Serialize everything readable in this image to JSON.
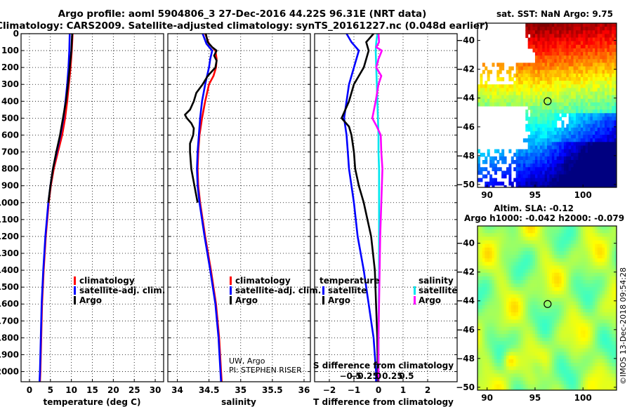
{
  "header": {
    "line1": "Argo profile: aoml 5904806_3 27-Dec-2016 44.22S 96.31E (NRT data)",
    "line2": "Climatology: CARS2009. Satellite-adjusted climatology: synTS_20161227.nc (0.048d earlier)"
  },
  "colors": {
    "climatology": "#ff0000",
    "satellite": "#0000ff",
    "argo": "#000000",
    "salinity_sat": "#00e5ee",
    "salinity_argo": "#ff00ff"
  },
  "chart_data": [
    {
      "type": "line",
      "id": "temperature",
      "xlabel": "temperature (deg C)",
      "xlim": [
        -2,
        32
      ],
      "ylim": [
        2060,
        0
      ],
      "xticks": [
        0,
        5,
        10,
        15,
        20,
        25,
        30
      ],
      "yticks": [
        0,
        100,
        200,
        300,
        400,
        500,
        600,
        700,
        800,
        900,
        1000,
        1100,
        1200,
        1300,
        1400,
        1500,
        1600,
        1700,
        1800,
        1900,
        2000
      ],
      "legend": [
        "climatology",
        "satellite-adj. clim.",
        "Argo"
      ],
      "series": [
        {
          "name": "climatology",
          "color": "#ff0000",
          "depth": [
            0,
            100,
            200,
            300,
            400,
            500,
            600,
            700,
            800,
            900,
            1000,
            1200,
            1400,
            1600,
            1800,
            2000,
            2060
          ],
          "values": [
            10.3,
            10.1,
            9.8,
            9.4,
            9.0,
            8.5,
            7.8,
            6.8,
            5.8,
            5.1,
            4.6,
            3.9,
            3.4,
            3.0,
            2.8,
            2.6,
            2.5
          ]
        },
        {
          "name": "satellite-adj. clim.",
          "color": "#0000ff",
          "depth": [
            0,
            100,
            200,
            300,
            400,
            500,
            600,
            700,
            800,
            900,
            1000,
            1200,
            1400,
            1600,
            1800,
            2000,
            2060
          ],
          "values": [
            9.6,
            9.5,
            9.3,
            9.0,
            8.6,
            8.1,
            7.4,
            6.5,
            5.6,
            5.0,
            4.5,
            3.8,
            3.3,
            2.9,
            2.7,
            2.5,
            2.4
          ]
        },
        {
          "name": "Argo",
          "color": "#000000",
          "depth": [
            0,
            50,
            100,
            200,
            300,
            400,
            500,
            600,
            700,
            800,
            900,
            1000
          ],
          "values": [
            10.2,
            10.1,
            10.0,
            9.6,
            9.2,
            8.7,
            8.0,
            7.3,
            6.4,
            5.6,
            5.0,
            4.5
          ]
        }
      ]
    },
    {
      "type": "line",
      "id": "salinity",
      "xlabel": "salinity",
      "xlim": [
        33.85,
        36.1
      ],
      "ylim": [
        2060,
        0
      ],
      "xticks": [
        34,
        34.5,
        35,
        35.5,
        36
      ],
      "legend": [
        "climatology",
        "satellite-adj. clim.",
        "Argo"
      ],
      "annotation": [
        "UW, Argo",
        "PI: STEPHEN RISER"
      ],
      "series": [
        {
          "name": "climatology",
          "color": "#ff0000",
          "depth": [
            0,
            60,
            100,
            150,
            200,
            250,
            300,
            400,
            500,
            600,
            700,
            800,
            900,
            1000,
            1200,
            1400,
            1600,
            1800,
            2000,
            2060
          ],
          "values": [
            34.44,
            34.5,
            34.6,
            34.62,
            34.61,
            34.57,
            34.5,
            34.44,
            34.39,
            34.35,
            34.33,
            34.32,
            34.33,
            34.36,
            34.44,
            34.53,
            34.61,
            34.66,
            34.69,
            34.7
          ]
        },
        {
          "name": "satellite-adj. clim.",
          "color": "#0000ff",
          "depth": [
            0,
            60,
            100,
            150,
            200,
            250,
            300,
            400,
            500,
            600,
            700,
            800,
            900,
            1000,
            1200,
            1400,
            1600,
            1800,
            2000,
            2060
          ],
          "values": [
            34.4,
            34.46,
            34.55,
            34.52,
            34.5,
            34.47,
            34.44,
            34.39,
            34.36,
            34.34,
            34.32,
            34.31,
            34.32,
            34.35,
            34.43,
            34.52,
            34.6,
            34.65,
            34.68,
            34.69
          ]
        },
        {
          "name": "Argo",
          "color": "#000000",
          "depth": [
            0,
            50,
            80,
            100,
            130,
            160,
            200,
            250,
            300,
            350,
            400,
            450,
            480,
            500,
            530,
            560,
            600,
            650,
            700,
            800,
            900,
            1000
          ],
          "values": [
            34.45,
            34.48,
            34.55,
            34.62,
            34.58,
            34.62,
            34.6,
            34.48,
            34.4,
            34.3,
            34.26,
            34.2,
            34.12,
            34.15,
            34.22,
            34.26,
            34.25,
            34.2,
            34.2,
            34.22,
            34.27,
            34.32
          ]
        }
      ]
    },
    {
      "type": "line",
      "id": "difference",
      "xlabel": "T difference from climatology",
      "xlabel_top": "S difference from climatology",
      "xlim": [
        -2.6,
        3.2
      ],
      "ylim": [
        2060,
        0
      ],
      "xticks_t": [
        -2,
        -1,
        0,
        1,
        2
      ],
      "xticks_s": [
        -0.5,
        -0.25,
        0,
        0.25,
        0.5
      ],
      "legend_t": {
        "title": "temperature",
        "items": [
          "satellite",
          "Argo"
        ]
      },
      "legend_s": {
        "title": "salinity",
        "items": [
          "satellite",
          "Argo"
        ]
      },
      "series": [
        {
          "name": "T satellite",
          "color": "#0000ff",
          "depth": [
            0,
            50,
            100,
            200,
            300,
            400,
            500,
            600,
            700,
            800,
            900,
            1000,
            1200,
            1400,
            1600,
            1800,
            2000,
            2060
          ],
          "values": [
            -1.3,
            -1.1,
            -0.8,
            -1.0,
            -1.2,
            -1.3,
            -1.4,
            -1.3,
            -1.25,
            -1.2,
            -1.1,
            -1.0,
            -0.85,
            -0.6,
            -0.4,
            -0.2,
            -0.1,
            -0.1
          ]
        },
        {
          "name": "T Argo",
          "color": "#000000",
          "depth": [
            0,
            50,
            100,
            200,
            300,
            400,
            500,
            550,
            600,
            700,
            800,
            900,
            1000,
            1200,
            1400,
            1600,
            1800,
            2000,
            2060
          ],
          "values": [
            -0.2,
            -0.5,
            -0.4,
            -0.6,
            -1.0,
            -1.2,
            -1.5,
            -1.2,
            -1.1,
            -1.0,
            -0.95,
            -0.8,
            -0.6,
            -0.3,
            -0.15,
            -0.1,
            -0.05,
            -0.03,
            -0.03
          ]
        },
        {
          "name": "S satellite",
          "color": "#00e5ee",
          "depth": [
            0,
            50,
            100,
            200,
            300,
            400,
            500,
            600,
            700,
            800,
            900,
            1000,
            1200,
            1400,
            1600,
            1800,
            2000,
            2060
          ],
          "values": [
            -0.02,
            -0.04,
            -0.05,
            -0.04,
            -0.03,
            -0.02,
            -0.01,
            0.0,
            0.0,
            0.01,
            0.01,
            0.01,
            0.01,
            0.01,
            0.005,
            0.0,
            0.0,
            0.0
          ]
        },
        {
          "name": "S Argo",
          "color": "#ff00ff",
          "depth": [
            0,
            50,
            80,
            100,
            150,
            200,
            250,
            300,
            400,
            450,
            500,
            550,
            600,
            700,
            800,
            900,
            1000,
            1100,
            1200,
            1400,
            1600,
            1800,
            2000,
            2060
          ],
          "values": [
            0.0,
            0.01,
            -0.04,
            0.06,
            0.0,
            -0.04,
            0.05,
            0.0,
            -0.05,
            -0.08,
            -0.11,
            -0.03,
            0.04,
            0.05,
            0.07,
            0.06,
            0.05,
            0.04,
            0.03,
            0.02,
            0.01,
            0.0,
            0.0,
            0.0
          ]
        }
      ]
    },
    {
      "type": "heatmap",
      "id": "sst_map",
      "title": "sat. SST: NaN Argo: 9.75",
      "xlim": [
        89,
        103.5
      ],
      "ylim": [
        -50.2,
        -38.8
      ],
      "xticks": [
        90,
        95,
        100
      ],
      "yticks": [
        -40,
        -42,
        -44,
        -46,
        -48,
        -50
      ],
      "marker": {
        "lon": 96.31,
        "lat": -44.22
      }
    },
    {
      "type": "heatmap",
      "id": "sla_map",
      "title_line1": "Altim. SLA: -0.12",
      "title_line2": "Argo h1000: -0.042 h2000: -0.079",
      "xlim": [
        89,
        103.5
      ],
      "ylim": [
        -50.2,
        -38.8
      ],
      "xticks": [
        90,
        95,
        100
      ],
      "yticks": [
        -40,
        -42,
        -44,
        -46,
        -48,
        -50
      ],
      "marker": {
        "lon": 96.31,
        "lat": -44.22
      }
    }
  ],
  "credit": "©IMOS 13-Dec-2018 09:54:28"
}
